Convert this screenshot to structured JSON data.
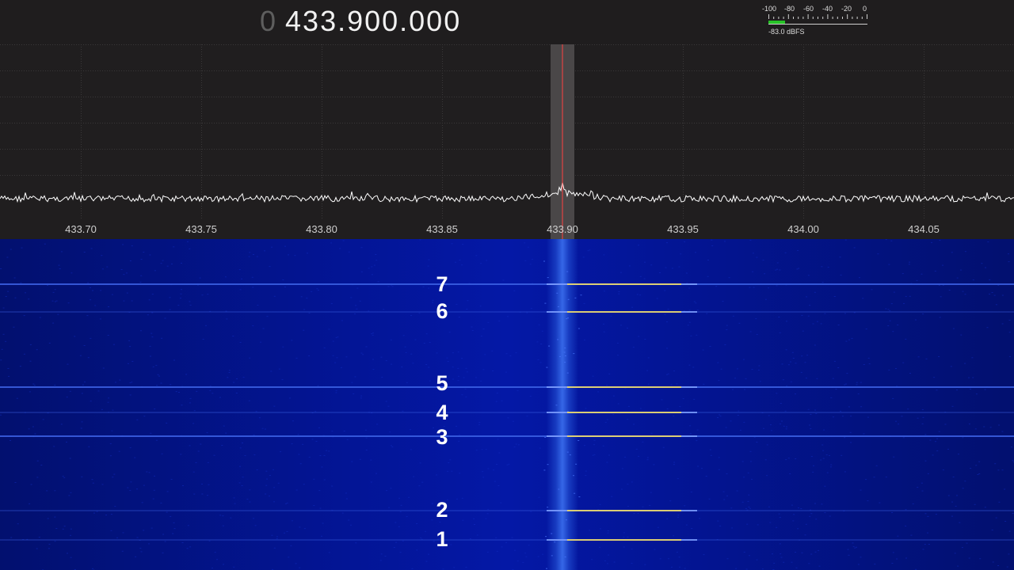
{
  "header": {
    "frequency_prefix": "0",
    "frequency_value": "433.900.000"
  },
  "signal_meter": {
    "tick_labels": [
      "-100",
      "-80",
      "-60",
      "-40",
      "-20",
      "0"
    ],
    "readout": "-83.0 dBFS",
    "level_dbfs": -83.0,
    "fill_color": "#27c227"
  },
  "spectrum": {
    "center_frequency_mhz": 433.9,
    "frequency_axis_labels": [
      "433.70",
      "433.75",
      "433.80",
      "433.85",
      "433.90",
      "433.95",
      "434.00",
      "434.05"
    ],
    "trace_color": "#ffffff",
    "marker_color": "#ff4040"
  },
  "waterfall": {
    "burst_labels": [
      "7",
      "6",
      "5",
      "4",
      "3",
      "2",
      "1"
    ],
    "burst_color": "#ffe14a"
  }
}
